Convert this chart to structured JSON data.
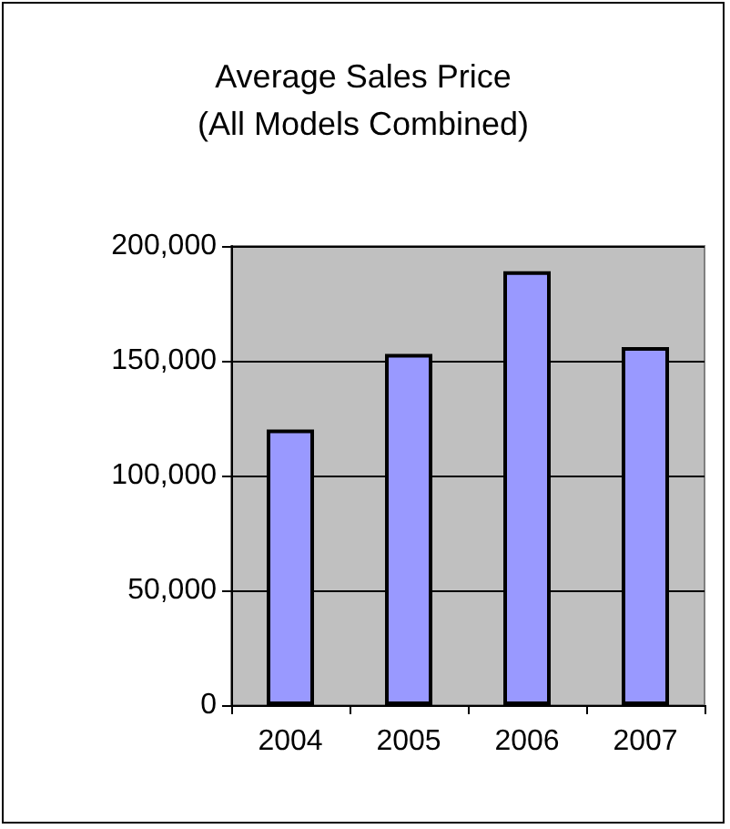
{
  "chart_data": {
    "type": "bar",
    "title": "Average Sales Price\n(All Models Combined)",
    "categories": [
      "2004",
      "2005",
      "2006",
      "2007"
    ],
    "values": [
      120000,
      153000,
      189000,
      156000
    ],
    "color": "#9999ff",
    "ylim": [
      0,
      200000
    ],
    "yticks": [
      0,
      {
        "value": 50000,
        "label": "50,000"
      },
      {
        "value": 100000,
        "label": "100,000"
      },
      {
        "value": 150000,
        "label": "150,000"
      },
      {
        "value": 200000,
        "label": "200,000"
      }
    ],
    "grid": "y"
  }
}
